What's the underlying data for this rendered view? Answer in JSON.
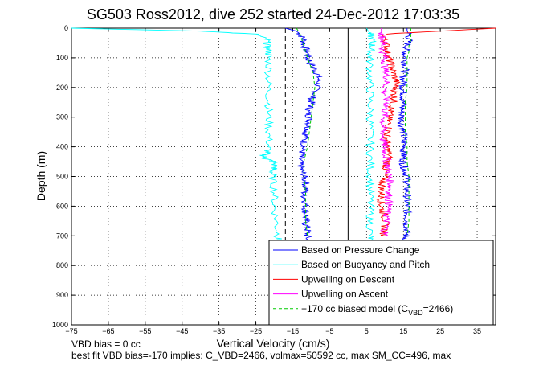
{
  "chart_data": {
    "type": "line",
    "title": "SG503 Ross2012, dive 252 started 24-Dec-2012 17:03:35",
    "xlabel": "Vertical Velocity (cm/s)",
    "ylabel": "Depth (m)",
    "xlim": [
      -75,
      40
    ],
    "ylim": [
      0,
      1000
    ],
    "y_reversed": true,
    "grid": "dotted",
    "legend_position": "bottom-right",
    "x_ticks": [
      -75,
      -65,
      -55,
      -45,
      -35,
      -25,
      -15,
      -5,
      5,
      15,
      25,
      35
    ],
    "y_ticks": [
      0,
      100,
      200,
      300,
      400,
      500,
      600,
      700,
      800,
      900,
      1000
    ],
    "reference_lines": [
      {
        "x": -17,
        "style": "dashed",
        "color": "#000000"
      },
      {
        "x": 0,
        "style": "solid",
        "color": "#000000"
      }
    ],
    "series": [
      {
        "name": "Based on Pressure Change",
        "color": "#0000ff",
        "style": "solid",
        "profiles": [
          {
            "depth": [
              0,
              10,
              20,
              40,
              60,
              80,
              100,
              120,
              140,
              160,
              180,
              200,
              220,
              240,
              260,
              280,
              300,
              320,
              340,
              360,
              380,
              400,
              420,
              440,
              460,
              480,
              500,
              520,
              540,
              560,
              580,
              600,
              620,
              640,
              660,
              680,
              700,
              720
            ],
            "velocity": [
              -17,
              -14,
              -13,
              -12,
              -12,
              -11,
              -11,
              -10,
              -9,
              -8,
              -8,
              -8.5,
              -9,
              -10,
              -10,
              -11,
              -10.5,
              -10.5,
              -11,
              -11.5,
              -12,
              -12,
              -12.5,
              -13,
              -13,
              -12.5,
              -12,
              -11.5,
              -11.5,
              -12,
              -11.5,
              -11.5,
              -11.5,
              -11.5,
              -11.5,
              -11,
              -11,
              -11
            ]
          },
          {
            "depth": [
              0,
              10,
              20,
              40,
              60,
              80,
              100,
              120,
              140,
              160,
              180,
              200,
              220,
              240,
              260,
              280,
              300,
              320,
              340,
              360,
              380,
              400,
              420,
              440,
              460,
              480,
              500,
              520,
              540,
              560,
              580,
              600,
              620,
              640,
              660,
              680,
              700,
              720
            ],
            "velocity": [
              16,
              16,
              16.5,
              16.5,
              16,
              15.5,
              15.5,
              15.5,
              15.5,
              15,
              15,
              15,
              15,
              15,
              14.8,
              14.5,
              14.5,
              14.5,
              14.8,
              15,
              15,
              15.5,
              15,
              15,
              15,
              15.5,
              16,
              16,
              16,
              16,
              16,
              16,
              16,
              16,
              16,
              16,
              15.8,
              15.5
            ]
          }
        ]
      },
      {
        "name": "Based on Buoyancy and Pitch",
        "color": "#00ffff",
        "style": "solid",
        "profiles": [
          {
            "depth": [
              0,
              10,
              20,
              40,
              60,
              80,
              100,
              150,
              200,
              250,
              300,
              350,
              400,
              420,
              430,
              440,
              450,
              470,
              480,
              500,
              550,
              600,
              650,
              700,
              720
            ],
            "velocity": [
              -75,
              -40,
              -25,
              -22,
              -22,
              -21.5,
              -21.5,
              -21.5,
              -21.5,
              -21.5,
              -21.5,
              -21.5,
              -21.5,
              -22,
              -23,
              -22.5,
              -20,
              -20,
              -20.5,
              -20.5,
              -20,
              -20,
              -19.5,
              -19,
              -19
            ]
          },
          {
            "depth": [
              0,
              10,
              20,
              40,
              60,
              80,
              100,
              150,
              200,
              250,
              300,
              350,
              400,
              450,
              500,
              550,
              600,
              650,
              700,
              720
            ],
            "velocity": [
              5,
              5.5,
              6,
              6.5,
              6.5,
              6,
              6,
              6,
              6,
              6,
              6,
              6,
              6,
              6,
              6,
              6,
              6,
              6,
              6,
              6
            ]
          }
        ]
      },
      {
        "name": "Upwelling on Descent",
        "color": "#ff0000",
        "style": "solid",
        "profiles": [
          {
            "depth": [
              0,
              20,
              40,
              60,
              80,
              100,
              120,
              140,
              160,
              180,
              200,
              220,
              240,
              260,
              280,
              300,
              320,
              340,
              360,
              380,
              400,
              420,
              440,
              460,
              480,
              500,
              520,
              540,
              560,
              580,
              600,
              620,
              640,
              660,
              680,
              700
            ],
            "velocity": [
              40,
              10,
              10,
              10.5,
              10.5,
              11,
              11.5,
              12,
              12.5,
              13,
              13,
              12.5,
              12.5,
              12,
              11.5,
              11,
              11,
              11,
              10.5,
              10.5,
              10.5,
              11,
              11,
              10.5,
              10,
              10,
              9.5,
              9,
              9,
              9,
              9,
              9.5,
              10,
              10,
              10,
              9.5
            ]
          }
        ]
      },
      {
        "name": "Upwelling on Ascent",
        "color": "#ff00ff",
        "style": "solid",
        "profiles": [
          {
            "depth": [
              0,
              20,
              40,
              60,
              80,
              100,
              120,
              140,
              160,
              180,
              200,
              220,
              240,
              260,
              280,
              300,
              320,
              340,
              360,
              380,
              400,
              420,
              440,
              460,
              480,
              500,
              520,
              540,
              560,
              580,
              600,
              620,
              640,
              660,
              680,
              700
            ],
            "velocity": [
              9,
              9,
              9.5,
              9.5,
              9.5,
              10,
              10,
              10,
              10.5,
              10.5,
              10,
              10,
              10.5,
              10.5,
              10,
              10,
              9.5,
              9.5,
              9.5,
              9.5,
              10,
              10,
              10.5,
              10.5,
              11,
              11,
              11.5,
              11.5,
              11,
              11,
              11,
              10.5,
              10.5,
              10.5,
              10,
              10
            ]
          }
        ]
      },
      {
        "name": "−170 cc biased model (C",
        "name_subscript": "VBD",
        "name_suffix": "=2466)",
        "color": "#00cc00",
        "style": "dashed",
        "profiles": [
          {
            "depth": [
              0,
              20,
              40,
              60,
              80,
              100,
              150,
              200,
              250,
              300,
              350,
              400,
              450,
              500,
              550,
              600,
              650,
              700
            ],
            "velocity": [
              -14,
              -13,
              -12.5,
              -12,
              -11.5,
              -11,
              -9.5,
              -9,
              -9.5,
              -10,
              -10.5,
              -11,
              -12,
              -12,
              -11.5,
              -11.5,
              -11.5,
              -11
            ]
          },
          {
            "depth": [
              0,
              20,
              40,
              60,
              80,
              100,
              150,
              200,
              250,
              300,
              350,
              400,
              450,
              500,
              550,
              600,
              650,
              700
            ],
            "velocity": [
              17,
              17,
              17,
              16.5,
              16.5,
              16,
              16,
              16,
              15.5,
              15.5,
              15.5,
              16,
              16,
              16.5,
              16.5,
              16.5,
              16.5,
              16
            ]
          }
        ]
      }
    ]
  },
  "footer": {
    "line1": "VBD bias = 0 cc",
    "line2": "best fit VBD bias=-170 implies: C_VBD=2466, volmax=50592 cc, max SM_CC=496, max"
  }
}
